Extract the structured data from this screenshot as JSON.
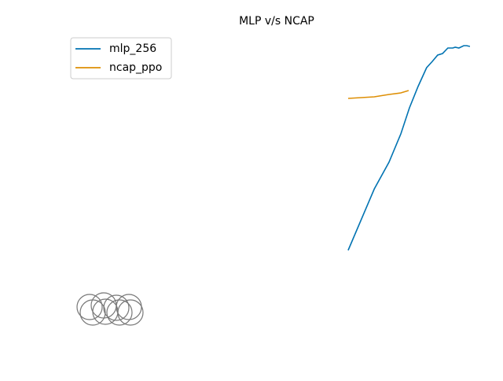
{
  "chart_data": {
    "type": "line",
    "title": "MLP v/s NCAP",
    "xlim": [
      0,
      100
    ],
    "ylim": [
      0,
      100
    ],
    "legend": "upper left",
    "series": [
      {
        "name": "mlp_256",
        "color": "#0173b2",
        "x": [
          69.8,
          76.2,
          79.8,
          82.7,
          84.8,
          86.9,
          89.0,
          90.4,
          91.7,
          92.9,
          94.2,
          95.4,
          96.0,
          96.9,
          98.1,
          98.8,
          99.6
        ],
        "values": [
          30.5,
          50,
          58.5,
          67.5,
          75.75,
          82.5,
          88.5,
          90.5,
          92.5,
          93,
          94.75,
          94.75,
          95,
          94.75,
          95.5,
          95.5,
          95.25
        ]
      },
      {
        "name": "ncap_ppo",
        "color": "#de8f05",
        "x": [
          69.8,
          76.2,
          79.8,
          82.7,
          84.6
        ],
        "values": [
          78.75,
          79.25,
          80,
          80.5,
          81.25
        ]
      }
    ]
  }
}
